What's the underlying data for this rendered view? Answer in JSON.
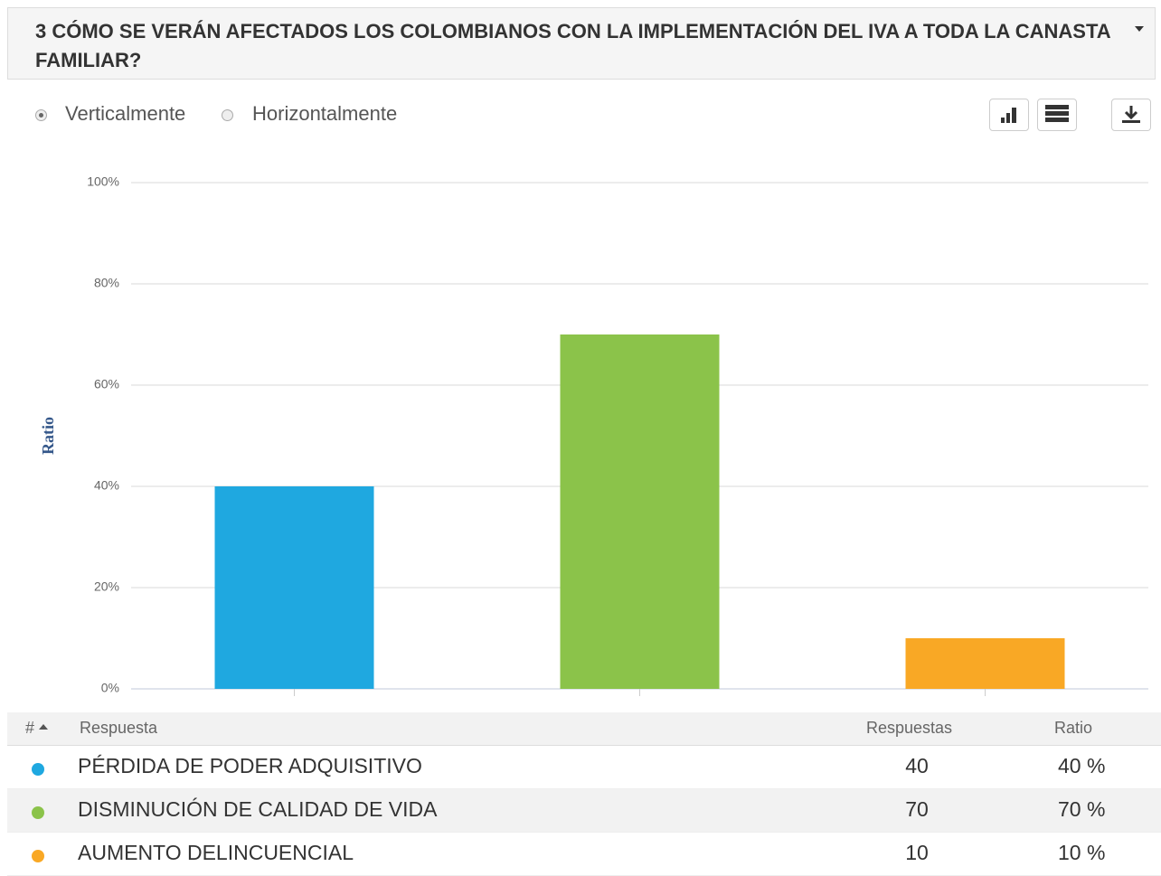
{
  "header": {
    "title": "3 CÓMO SE VERÁN AFECTADOS LOS COLOMBIANOS CON LA IMPLEMENTACIÓN DEL IVA A TODA LA CANASTA FAMILIAR?"
  },
  "options": [
    "Verticalmente",
    "Horizontalmente"
  ],
  "chart_data": {
    "type": "bar",
    "ylabel": "Ratio",
    "categories": [
      null,
      null,
      null
    ],
    "values": [
      40,
      70,
      10
    ],
    "colors": [
      "#1fa8e0",
      "#8bc34a",
      "#f9a825"
    ],
    "ylim": [
      0,
      100
    ],
    "yticks": [
      {
        "value": 0,
        "label": "0%"
      },
      {
        "value": 20,
        "label": "20%"
      },
      {
        "value": 40,
        "label": "40%"
      },
      {
        "value": 60,
        "label": "60%"
      },
      {
        "value": 80,
        "label": "80%"
      },
      {
        "value": 100,
        "label": "100%"
      }
    ],
    "grid": true
  },
  "table": {
    "headers": [
      "#",
      "Respuesta",
      "Respuestas",
      "Ratio"
    ],
    "rows": [
      [
        "PÉRDIDA DE PODER ADQUISITIVO",
        "40",
        "40 %"
      ],
      [
        "DISMINUCIÓN DE CALIDAD DE VIDA",
        "70",
        "70 %"
      ],
      [
        "AUMENTO DELINCUENCIAL",
        "10",
        "10 %"
      ]
    ]
  }
}
